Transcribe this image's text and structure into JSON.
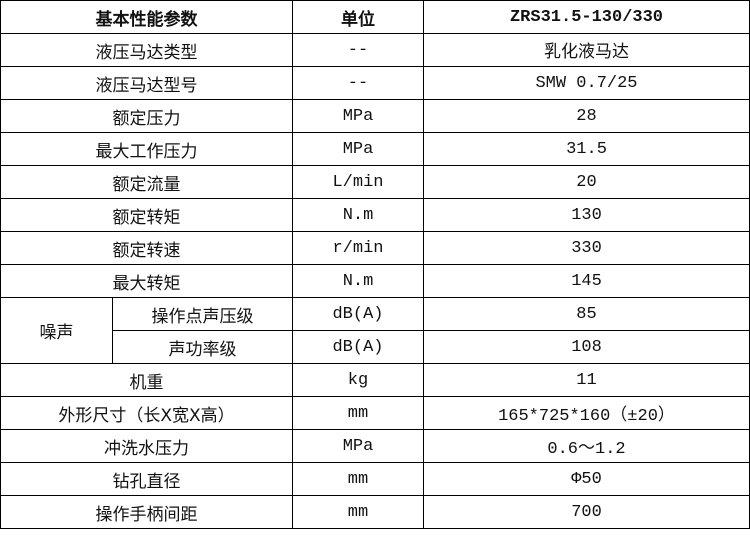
{
  "header": {
    "param": "基本性能参数",
    "unit": "单位",
    "model": "ZRS31.5-130/330"
  },
  "rows": [
    {
      "param": "液压马达类型",
      "unit": "--",
      "value": "乳化液马达"
    },
    {
      "param": "液压马达型号",
      "unit": "--",
      "value": "SMW 0.7/25"
    },
    {
      "param": "额定压力",
      "unit": "MPa",
      "value": "28"
    },
    {
      "param": "最大工作压力",
      "unit": "MPa",
      "value": "31.5"
    },
    {
      "param": "额定流量",
      "unit": "L/min",
      "value": "20"
    },
    {
      "param": "额定转矩",
      "unit": "N.m",
      "value": "130"
    },
    {
      "param": "额定转速",
      "unit": "r/min",
      "value": "330"
    },
    {
      "param": "最大转矩",
      "unit": "N.m",
      "value": "145"
    }
  ],
  "noise": {
    "group": "噪声",
    "rows": [
      {
        "param": "操作点声压级",
        "unit": "dB(A)",
        "value": "85"
      },
      {
        "param": "声功率级",
        "unit": "dB(A)",
        "value": "108"
      }
    ]
  },
  "rows2": [
    {
      "param": "机重",
      "unit": "kg",
      "value": "11"
    },
    {
      "param": "外形尺寸（长X宽X高）",
      "unit": "mm",
      "value": "165*725*160（±20）"
    },
    {
      "param": "冲洗水压力",
      "unit": "MPa",
      "value": "0.6～1.2"
    },
    {
      "param": "钻孔直径",
      "unit": "mm",
      "value": "Φ50"
    },
    {
      "param": "操作手柄间距",
      "unit": "mm",
      "value": "700"
    }
  ]
}
